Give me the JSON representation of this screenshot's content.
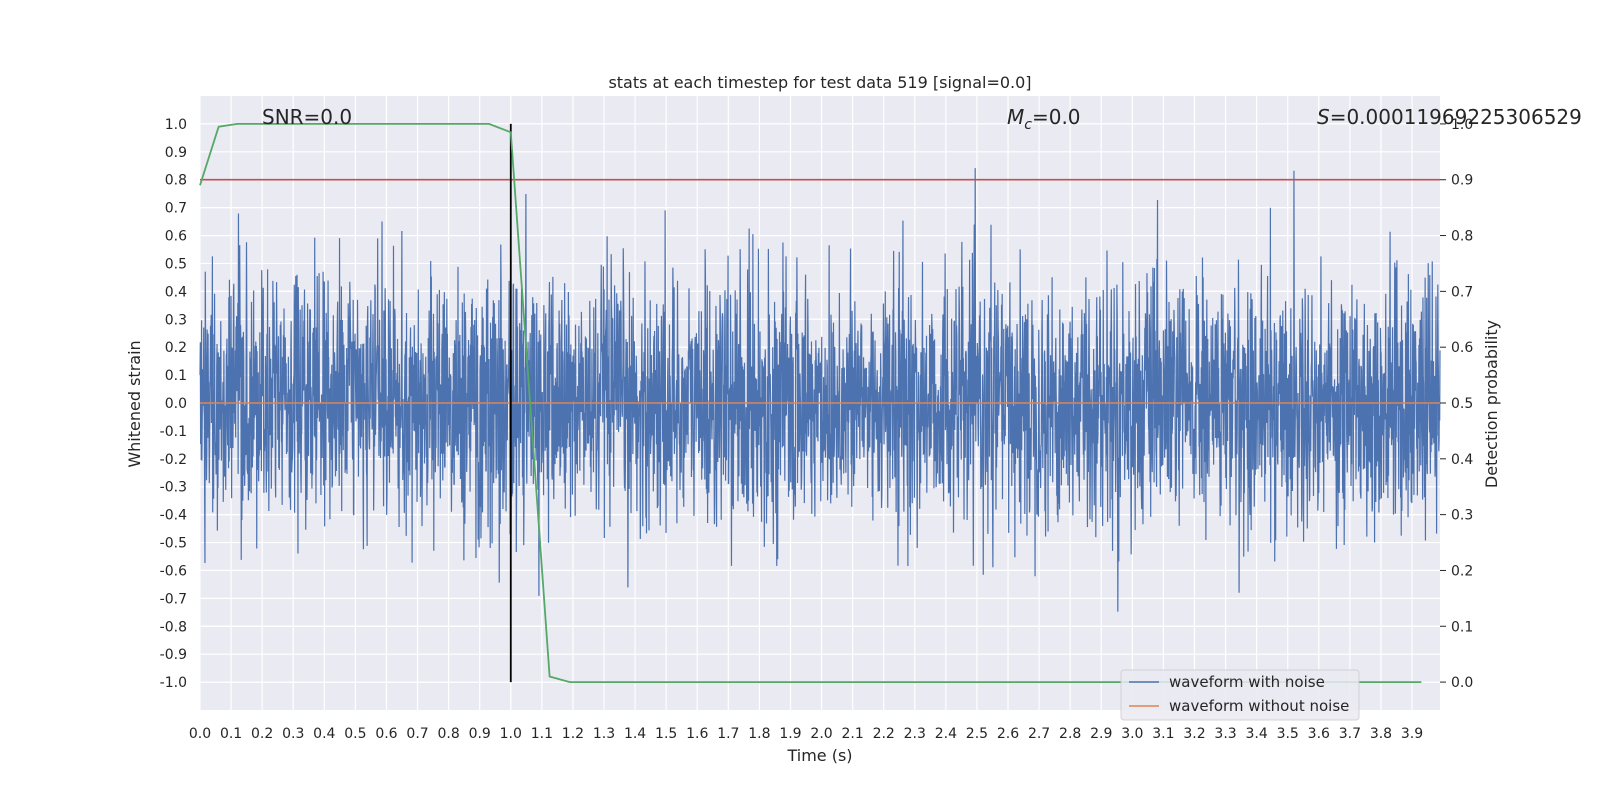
{
  "chart_data": {
    "type": "line",
    "title": "stats at each timestep for test data 519 [signal=0.0]",
    "xlabel": "Time (s)",
    "ylabel": "Whitened strain",
    "ylabel_right": "Detection probability",
    "xlim": [
      0.0,
      3.99
    ],
    "ylim": [
      -1.1,
      1.1
    ],
    "ylim_right": [
      -0.05,
      1.05
    ],
    "x_ticks": [
      "0.0",
      "0.1",
      "0.2",
      "0.3",
      "0.4",
      "0.5",
      "0.6",
      "0.7",
      "0.8",
      "0.9",
      "1.0",
      "1.1",
      "1.2",
      "1.3",
      "1.4",
      "1.5",
      "1.6",
      "1.7",
      "1.8",
      "1.9",
      "2.0",
      "2.1",
      "2.2",
      "2.3",
      "2.4",
      "2.5",
      "2.6",
      "2.7",
      "2.8",
      "2.9",
      "3.0",
      "3.1",
      "3.2",
      "3.3",
      "3.4",
      "3.5",
      "3.6",
      "3.7",
      "3.8",
      "3.9"
    ],
    "y_ticks": [
      "1.0",
      "0.9",
      "0.8",
      "0.7",
      "0.6",
      "0.5",
      "0.4",
      "0.3",
      "0.2",
      "0.1",
      "0.0",
      "-0.1",
      "-0.2",
      "-0.3",
      "-0.4",
      "-0.5",
      "-0.6",
      "-0.7",
      "-0.8",
      "-0.9",
      "-1.0"
    ],
    "y_ticks_right": [
      "1.0",
      "0.9",
      "0.8",
      "0.7",
      "0.6",
      "0.5",
      "0.4",
      "0.3",
      "0.2",
      "0.1",
      "0.0"
    ],
    "grid": true,
    "legend_position": "bottom-right",
    "annotations": {
      "snr": "SNR=0.0",
      "mc_symbol": "M",
      "mc_sub": "c",
      "mc_value": "=0.0",
      "s_symbol": "S",
      "s_value": "=0.00011969225306529"
    },
    "series": [
      {
        "name": "waveform with noise",
        "color": "#4c72b0",
        "axis": "left",
        "description": "whitened noise, amplitude roughly between -1.0 and 1.0",
        "amplitude": 1.0
      },
      {
        "name": "waveform without noise",
        "color": "#dd8452",
        "axis": "left",
        "x": [
          0.0,
          3.99
        ],
        "y": [
          0.0,
          0.0
        ]
      },
      {
        "name": "",
        "color": "#55a868",
        "axis": "right",
        "x": [
          0.0,
          0.06,
          0.12,
          0.2,
          0.5,
          0.85,
          0.93,
          1.0,
          1.125,
          1.19,
          1.5,
          2.0,
          2.5,
          3.0,
          3.5,
          3.93
        ],
        "y": [
          0.89,
          0.995,
          1.0,
          1.0,
          1.0,
          1.0,
          1.0,
          0.985,
          0.01,
          0.0,
          0.0,
          0.0,
          0.0,
          0.0,
          0.0,
          0.0
        ]
      }
    ],
    "threshold": {
      "color": "#c44e52",
      "axis": "right",
      "value": 0.9
    },
    "vline": {
      "color": "#000000",
      "x": 1.0,
      "ymin": -1.0,
      "ymax": 1.0
    }
  }
}
